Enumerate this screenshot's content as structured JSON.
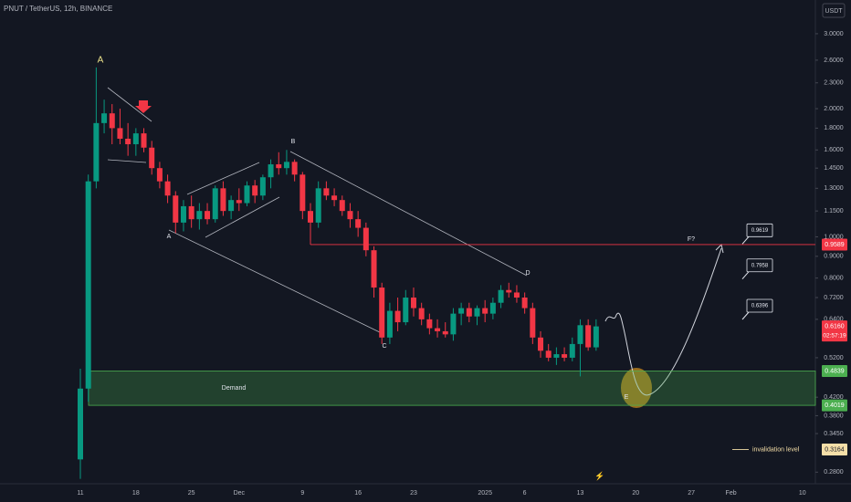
{
  "header": {
    "symbol": "PNUT / TetherUS, 12h, BINANCE",
    "currency": "USDT"
  },
  "chart_data": {
    "type": "candlestick",
    "log_scale": true,
    "grid": false,
    "up_color": "#089981",
    "down_color": "#f23645",
    "categories": [
      "11",
      null,
      null,
      null,
      null,
      null,
      null,
      "18",
      null,
      null,
      null,
      null,
      null,
      null,
      "25",
      null,
      null,
      null,
      null,
      null,
      "Dec",
      null,
      null,
      null,
      null,
      null,
      null,
      null,
      "9",
      null,
      null,
      null,
      null,
      null,
      null,
      "16",
      null,
      null,
      null,
      null,
      null,
      null,
      "23",
      null,
      null,
      null,
      null,
      null,
      null,
      null,
      null,
      "2025",
      null,
      null,
      null,
      null,
      "6",
      null,
      null,
      null,
      null,
      null,
      null,
      "13",
      null,
      null,
      null,
      null,
      null,
      null,
      "20",
      null,
      null,
      null,
      null,
      null,
      null,
      "27",
      null,
      null,
      null,
      null,
      "Feb",
      null,
      null,
      null,
      null,
      null,
      null,
      null,
      null,
      "10"
    ],
    "open": [
      0.3,
      0.44,
      1.35,
      1.85,
      1.95,
      1.8,
      1.7,
      1.65,
      1.75,
      1.62,
      1.45,
      1.35,
      1.25,
      1.08,
      1.18,
      1.1,
      1.15,
      1.1,
      1.3,
      1.15,
      1.22,
      1.2,
      1.32,
      1.25,
      1.38,
      1.48,
      1.45,
      1.5,
      1.4,
      1.15,
      1.08,
      1.3,
      1.25,
      1.22,
      1.15,
      1.1,
      1.05,
      0.93,
      0.76,
      0.58,
      0.67,
      0.63,
      0.72,
      0.68,
      0.64,
      0.61,
      0.6,
      0.59,
      0.66,
      0.68,
      0.65,
      0.68,
      0.66,
      0.7,
      0.75,
      0.74,
      0.72,
      0.68,
      0.58,
      0.54,
      0.52,
      0.53,
      0.52,
      0.56,
      0.62,
      0.55,
      null,
      null,
      null,
      null,
      null,
      null,
      null,
      null,
      null,
      null,
      null,
      null,
      null,
      null,
      null,
      null,
      null,
      null,
      null,
      null,
      null,
      null,
      null,
      null,
      null,
      null
    ],
    "high": [
      0.49,
      1.4,
      2.5,
      2.1,
      2.05,
      2.0,
      1.85,
      1.8,
      1.8,
      1.68,
      1.5,
      1.4,
      1.28,
      1.22,
      1.25,
      1.2,
      1.2,
      1.32,
      1.35,
      1.25,
      1.3,
      1.35,
      1.36,
      1.4,
      1.52,
      1.58,
      1.6,
      1.52,
      1.42,
      1.2,
      1.35,
      1.35,
      1.3,
      1.25,
      1.2,
      1.15,
      1.08,
      0.95,
      0.78,
      0.7,
      0.72,
      0.75,
      0.76,
      0.7,
      0.66,
      0.64,
      0.63,
      0.68,
      0.7,
      0.7,
      0.69,
      0.71,
      0.72,
      0.77,
      0.78,
      0.77,
      0.74,
      0.7,
      0.6,
      0.56,
      0.55,
      0.55,
      0.58,
      0.64,
      0.64,
      0.64,
      null,
      null,
      null,
      null,
      null,
      null,
      null,
      null,
      null,
      null,
      null,
      null,
      null,
      null,
      null,
      null,
      null,
      null,
      null,
      null,
      null,
      null,
      null,
      null,
      null,
      null
    ],
    "low": [
      0.27,
      0.41,
      1.3,
      1.75,
      1.65,
      1.65,
      1.55,
      1.55,
      1.58,
      1.4,
      1.3,
      1.2,
      1.02,
      1.03,
      1.05,
      1.04,
      1.07,
      1.08,
      1.12,
      1.1,
      1.15,
      1.18,
      1.2,
      1.22,
      1.3,
      1.4,
      1.4,
      1.35,
      1.1,
      0.98,
      1.05,
      1.22,
      1.18,
      1.12,
      1.05,
      1.0,
      0.9,
      0.72,
      0.56,
      0.56,
      0.6,
      0.62,
      0.65,
      0.62,
      0.59,
      0.58,
      0.58,
      0.57,
      0.62,
      0.63,
      0.62,
      0.63,
      0.64,
      0.68,
      0.72,
      0.7,
      0.66,
      0.56,
      0.52,
      0.51,
      0.5,
      0.51,
      0.51,
      0.47,
      0.54,
      0.54,
      null,
      null,
      null,
      null,
      null,
      null,
      null,
      null,
      null,
      null,
      null,
      null,
      null,
      null,
      null,
      null,
      null,
      null,
      null,
      null,
      null,
      null,
      null,
      null,
      null,
      null
    ],
    "close": [
      0.44,
      1.35,
      1.85,
      1.95,
      1.8,
      1.7,
      1.65,
      1.75,
      1.62,
      1.45,
      1.35,
      1.25,
      1.08,
      1.18,
      1.1,
      1.15,
      1.1,
      1.3,
      1.15,
      1.22,
      1.2,
      1.32,
      1.25,
      1.38,
      1.48,
      1.45,
      1.5,
      1.4,
      1.15,
      1.08,
      1.3,
      1.25,
      1.22,
      1.15,
      1.1,
      1.05,
      0.93,
      0.76,
      0.58,
      0.67,
      0.63,
      0.72,
      0.68,
      0.64,
      0.61,
      0.6,
      0.59,
      0.66,
      0.68,
      0.65,
      0.68,
      0.66,
      0.7,
      0.75,
      0.74,
      0.72,
      0.68,
      0.58,
      0.54,
      0.52,
      0.53,
      0.52,
      0.56,
      0.62,
      0.55,
      0.616,
      null,
      null,
      null,
      null,
      null,
      null,
      null,
      null,
      null,
      null,
      null,
      null,
      null,
      null,
      null,
      null,
      null,
      null,
      null,
      null,
      null,
      null,
      null,
      null,
      null,
      null
    ],
    "ylim": [
      0.263,
      3.6
    ],
    "yticks": [
      {
        "value": 3.0,
        "label": "3.0000"
      },
      {
        "value": 2.6,
        "label": "2.6000"
      },
      {
        "value": 2.3,
        "label": "2.3000"
      },
      {
        "value": 2.0,
        "label": "2.0000"
      },
      {
        "value": 1.8,
        "label": "1.8000"
      },
      {
        "value": 1.6,
        "label": "1.6000"
      },
      {
        "value": 1.45,
        "label": "1.4500"
      },
      {
        "value": 1.3,
        "label": "1.3000"
      },
      {
        "value": 1.15,
        "label": "1.1500"
      },
      {
        "value": 1.0,
        "label": "1.0000"
      },
      {
        "value": 0.9,
        "label": "0.9000"
      },
      {
        "value": 0.8,
        "label": "0.8000"
      },
      {
        "value": 0.72,
        "label": "0.7200"
      },
      {
        "value": 0.64,
        "label": "0.6400"
      },
      {
        "value": 0.52,
        "label": "0.5200"
      },
      {
        "value": 0.42,
        "label": "0.4200"
      },
      {
        "value": 0.38,
        "label": "0.3800"
      },
      {
        "value": 0.345,
        "label": "0.3450"
      },
      {
        "value": 0.28,
        "label": "0.2800"
      }
    ],
    "resistance": {
      "value": 0.9589,
      "color": "#f23645"
    },
    "zone": {
      "label": "Demand",
      "top": 0.4839,
      "bottom": 0.4019,
      "color": "#4caf50"
    },
    "invalidation": {
      "label": "invalidation level",
      "value": 0.3164,
      "color": "#f5dfa8"
    },
    "current_price": {
      "value": 0.616,
      "label": "0.6160",
      "countdown": "02:57:19"
    },
    "targets": [
      0.9619,
      0.7958,
      0.6396
    ],
    "wave_labels": [
      "A",
      "A",
      "B",
      "C",
      "D",
      "E",
      "F?"
    ]
  }
}
